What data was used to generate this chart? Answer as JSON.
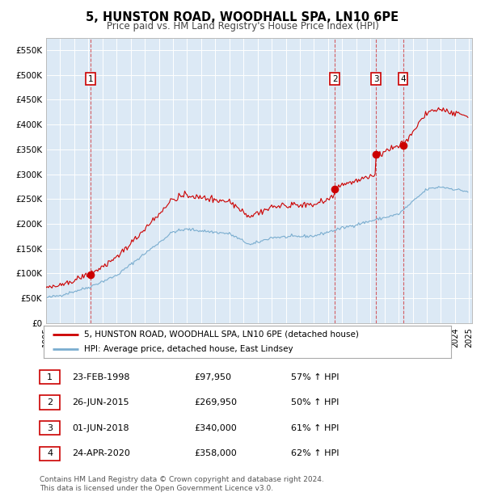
{
  "title": "5, HUNSTON ROAD, WOODHALL SPA, LN10 6PE",
  "subtitle": "Price paid vs. HM Land Registry's House Price Index (HPI)",
  "legend_line1": "5, HUNSTON ROAD, WOODHALL SPA, LN10 6PE (detached house)",
  "legend_line2": "HPI: Average price, detached house, East Lindsey",
  "footer": "Contains HM Land Registry data © Crown copyright and database right 2024.\nThis data is licensed under the Open Government Licence v3.0.",
  "sale_color": "#cc0000",
  "hpi_color": "#7aadcf",
  "plot_bg_color": "#dce9f5",
  "ylim": [
    0,
    575000
  ],
  "yticks": [
    0,
    50000,
    100000,
    150000,
    200000,
    250000,
    300000,
    350000,
    400000,
    450000,
    500000,
    550000
  ],
  "ytick_labels": [
    "£0",
    "£50K",
    "£100K",
    "£150K",
    "£200K",
    "£250K",
    "£300K",
    "£350K",
    "£400K",
    "£450K",
    "£500K",
    "£550K"
  ],
  "transactions": [
    {
      "num": 1,
      "date": "23-FEB-1998",
      "date_decimal": 1998.14,
      "price": 97950,
      "pct": "57% ↑ HPI"
    },
    {
      "num": 2,
      "date": "26-JUN-2015",
      "date_decimal": 2015.48,
      "price": 269950,
      "pct": "50% ↑ HPI"
    },
    {
      "num": 3,
      "date": "01-JUN-2018",
      "date_decimal": 2018.41,
      "price": 340000,
      "pct": "61% ↑ HPI"
    },
    {
      "num": 4,
      "date": "24-APR-2020",
      "date_decimal": 2020.31,
      "price": 358000,
      "pct": "62% ↑ HPI"
    }
  ],
  "xlim": [
    1995.0,
    2025.2
  ],
  "xticks": [
    1995,
    1996,
    1997,
    1998,
    1999,
    2000,
    2001,
    2002,
    2003,
    2004,
    2005,
    2006,
    2007,
    2008,
    2009,
    2010,
    2011,
    2012,
    2013,
    2014,
    2015,
    2016,
    2017,
    2018,
    2019,
    2020,
    2021,
    2022,
    2023,
    2024,
    2025
  ]
}
